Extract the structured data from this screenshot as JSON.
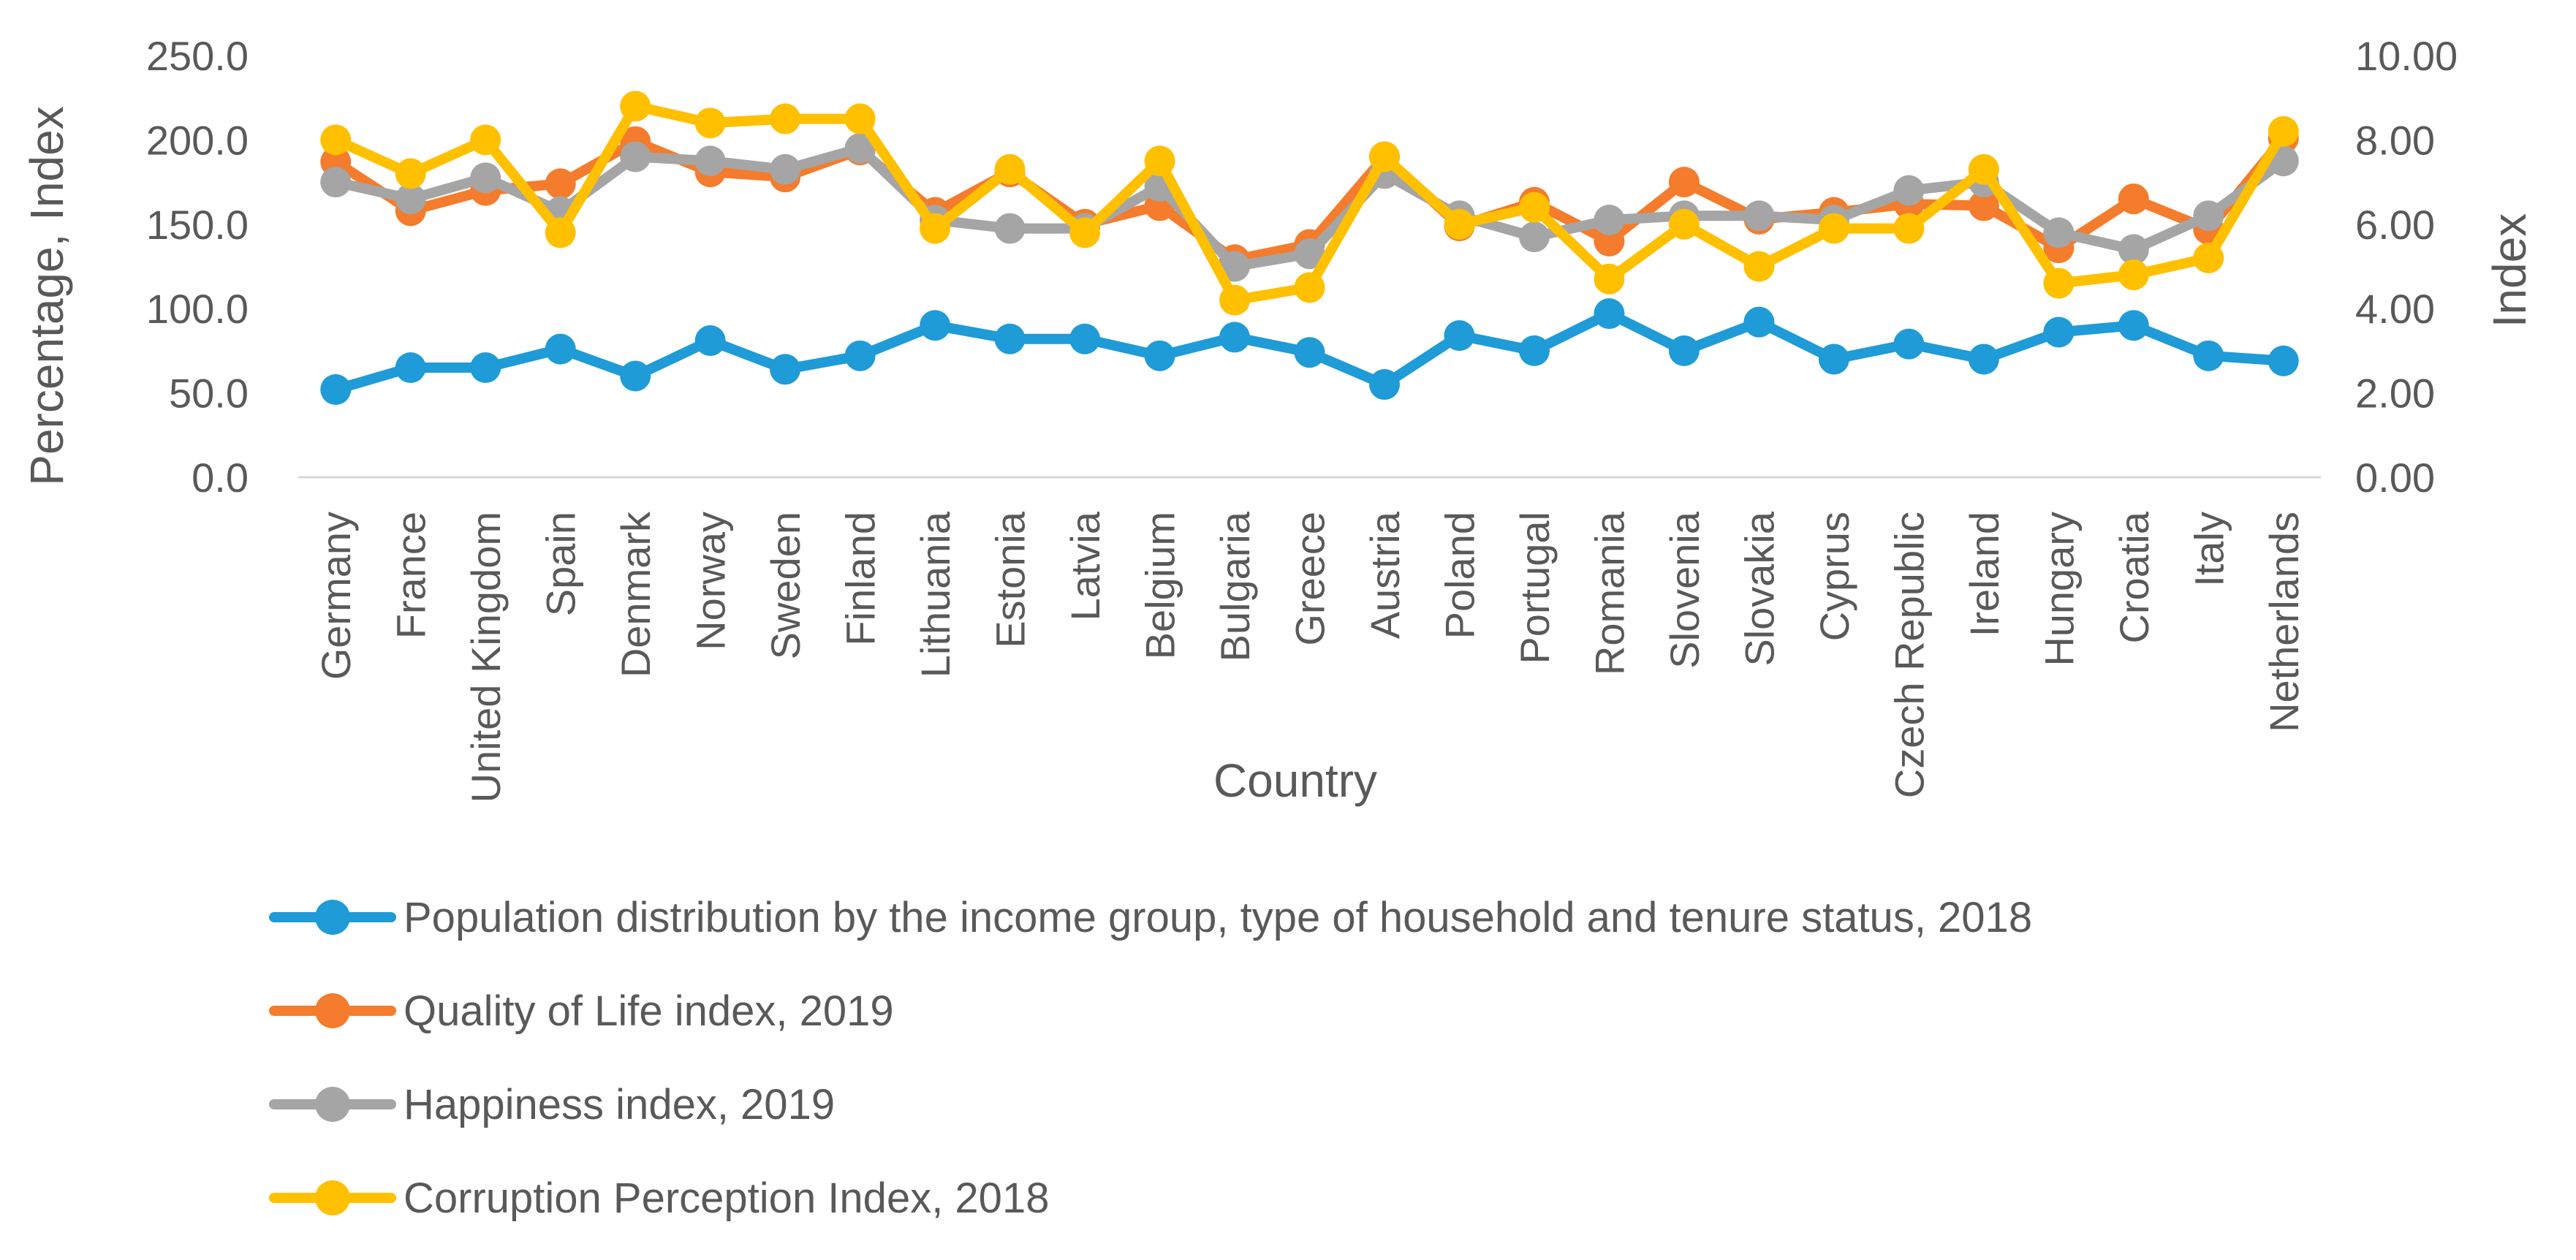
{
  "chart_data": {
    "type": "line",
    "title": "",
    "xlabel": "Country",
    "ylabel": "Percentage, Index",
    "y2label": "Index",
    "ylim": [
      0,
      250
    ],
    "y2lim": [
      0,
      10
    ],
    "yticks": [
      "0.0",
      "50.0",
      "100.0",
      "150.0",
      "200.0",
      "250.0"
    ],
    "y2ticks": [
      "0.00",
      "2.00",
      "4.00",
      "6.00",
      "8.00",
      "10.00"
    ],
    "grid": false,
    "legend_position": "bottom",
    "categories": [
      "Germany",
      "France",
      "United Kingdom",
      "Spain",
      "Denmark",
      "Norway",
      "Sweden",
      "Finland",
      "Lithuania",
      "Estonia",
      "Latvia",
      "Belgium",
      "Bulgaria",
      "Greece",
      "Austria",
      "Poland",
      "Portugal",
      "Romania",
      "Slovenia",
      "Slovakia",
      "Cyprus",
      "Czech Republic",
      "Ireland",
      "Hungary",
      "Croatia",
      "Italy",
      "Netherlands"
    ],
    "series": [
      {
        "name": "Population distribution by the income group, type of household and tenure status, 2018",
        "color": "#1f9bd7",
        "axis": "left",
        "values": [
          52,
          65,
          65,
          76,
          60,
          81,
          64,
          72,
          90,
          82,
          82,
          72,
          83,
          74,
          55,
          84,
          75,
          97,
          75,
          92,
          70,
          79,
          70,
          86,
          90,
          72,
          69
        ]
      },
      {
        "name": "Quality of Life index, 2019",
        "color": "#f47c2c",
        "axis": "left",
        "values": [
          187,
          158,
          170,
          174,
          199,
          181,
          178,
          194,
          157,
          181,
          150,
          161,
          129,
          138,
          190,
          149,
          163,
          140,
          175,
          153,
          157,
          162,
          161,
          136,
          165,
          147,
          201
        ]
      },
      {
        "name": "Happiness index, 2019",
        "color": "#a5a5a5",
        "axis": "right",
        "values": [
          7.0,
          6.6,
          7.1,
          6.3,
          7.6,
          7.5,
          7.3,
          7.8,
          6.1,
          5.9,
          5.9,
          6.9,
          5.0,
          5.3,
          7.2,
          6.2,
          5.7,
          6.1,
          6.2,
          6.2,
          6.1,
          6.8,
          7.0,
          5.8,
          5.4,
          6.2,
          7.5
        ]
      },
      {
        "name": "Corruption Perception Index, 2018",
        "color": "#ffc000",
        "axis": "right",
        "values": [
          8.0,
          7.2,
          8.0,
          5.8,
          8.8,
          8.4,
          8.5,
          8.5,
          5.9,
          7.3,
          5.8,
          7.5,
          4.2,
          4.5,
          7.6,
          6.0,
          6.4,
          4.7,
          6.0,
          5.0,
          5.9,
          5.9,
          7.3,
          4.6,
          4.8,
          5.2,
          8.2
        ]
      }
    ]
  }
}
